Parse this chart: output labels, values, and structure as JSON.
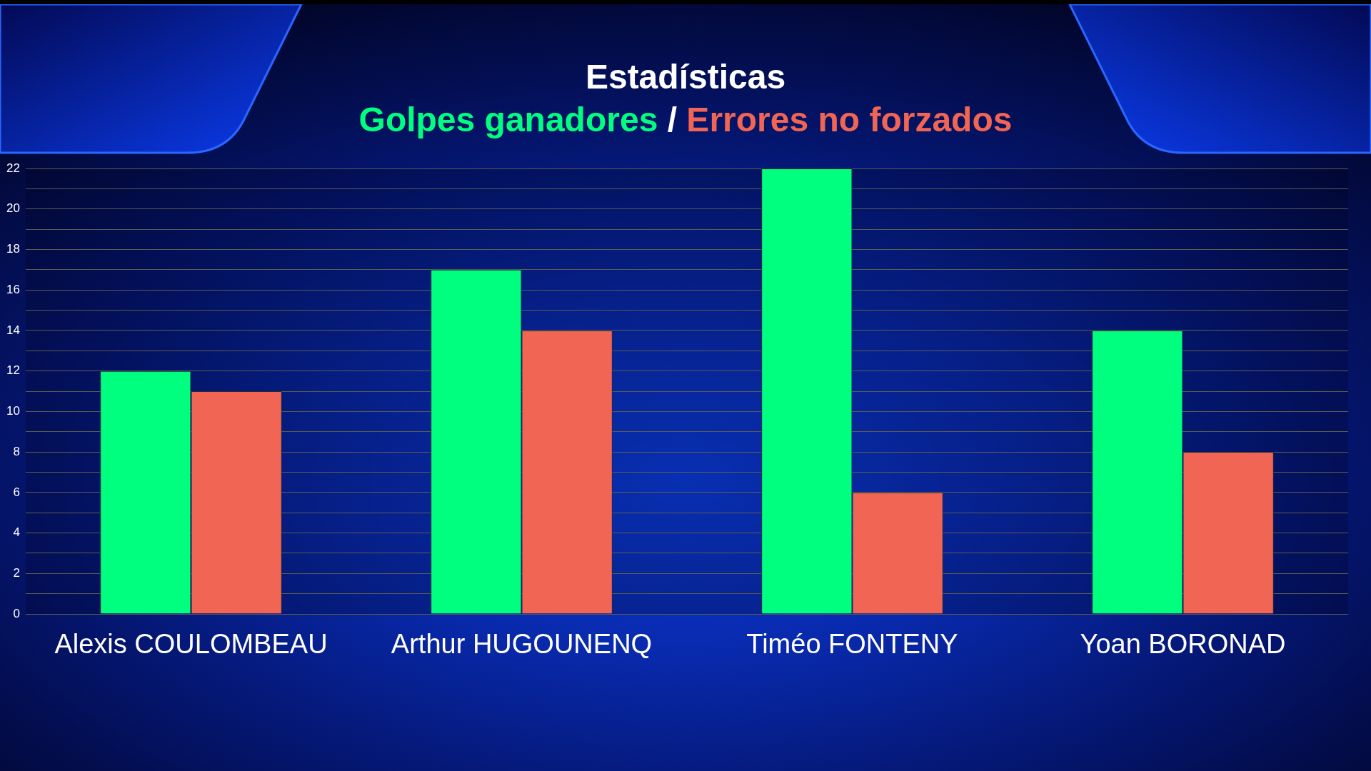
{
  "chart_data": {
    "type": "bar",
    "title": "Estadísticas",
    "categories": [
      "Alexis COULOMBEAU",
      "Arthur HUGOUNENQ",
      "Timéo FONTENY",
      "Yoan BORONAD"
    ],
    "series": [
      {
        "name": "Golpes ganadores",
        "color": "#00ff7f",
        "values": [
          12,
          17,
          22,
          14
        ]
      },
      {
        "name": "Errores no forzados",
        "color": "#f06553",
        "values": [
          11,
          14,
          6,
          8
        ]
      }
    ],
    "ylim": [
      0,
      22
    ],
    "yticks": [
      0,
      {
        "value": 1,
        "label": null
      },
      2,
      {
        "value": 3,
        "label": null
      },
      4,
      {
        "value": 5,
        "label": null
      },
      6,
      {
        "value": 7,
        "label": null
      },
      8,
      {
        "value": 9,
        "label": null
      },
      10,
      {
        "value": 11,
        "label": null
      },
      12,
      {
        "value": 13,
        "label": null
      },
      14,
      {
        "value": 15,
        "label": null
      },
      16,
      {
        "value": 17,
        "label": null
      },
      18,
      {
        "value": 19,
        "label": null
      },
      20,
      {
        "value": 21,
        "label": null
      },
      22
    ],
    "grid": "y",
    "legend": "top",
    "annotations": [
      "/"
    ]
  }
}
